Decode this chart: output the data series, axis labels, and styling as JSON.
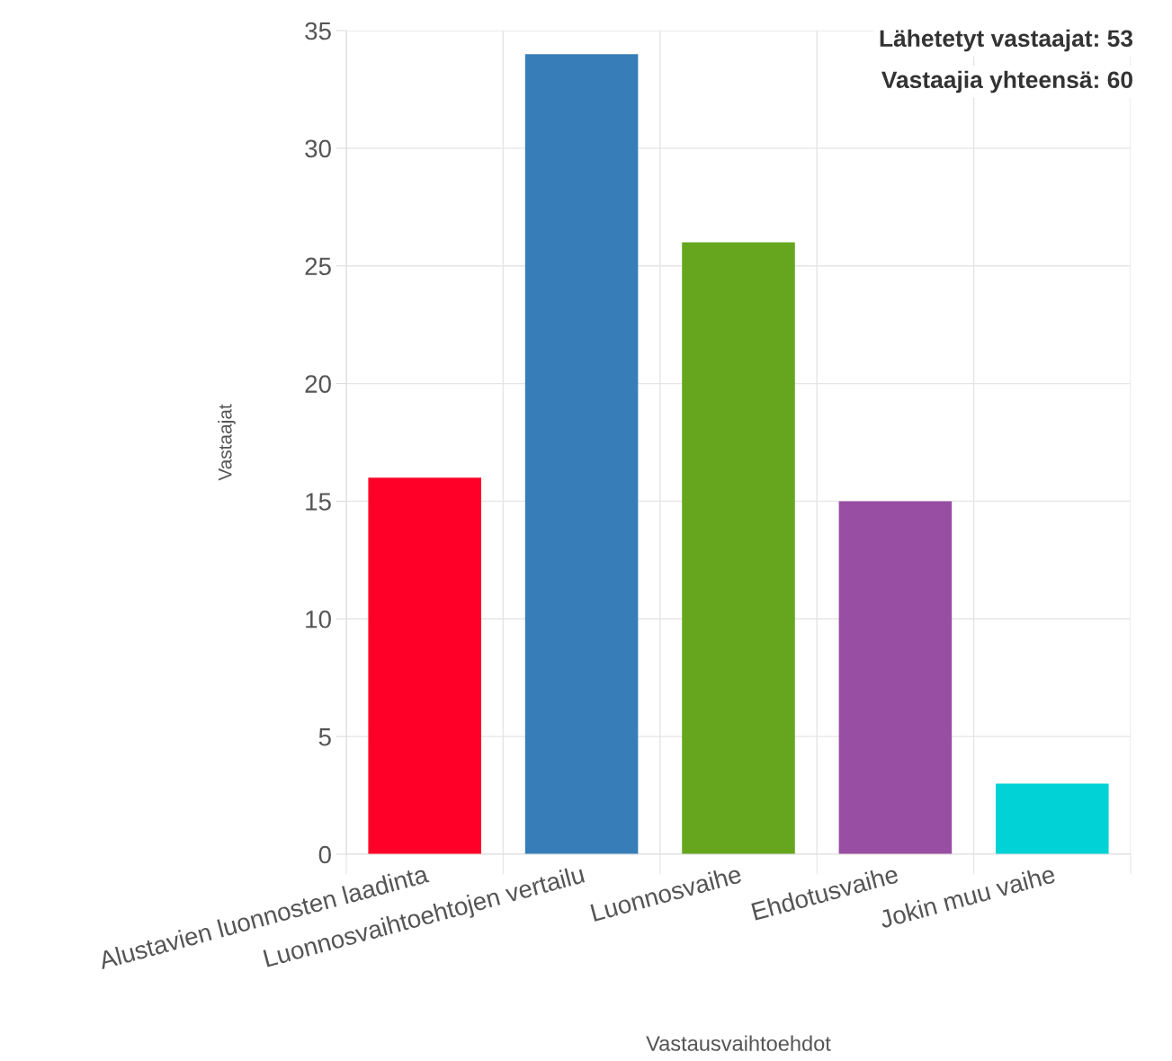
{
  "chart_data": {
    "type": "bar",
    "xlabel": "Vastausvaihtoehdot",
    "ylabel": "Vastaajat",
    "categories": [
      "Alustavien luonnosten laadinta",
      "Luonnosvaihtoehtojen vertailu",
      "Luonnosvaihe",
      "Ehdotusvaihe",
      "Jokin muu vaihe"
    ],
    "values": [
      16,
      34,
      26,
      15,
      3
    ],
    "colors": [
      "#ff0029",
      "#377eb8",
      "#66a61e",
      "#984ea3",
      "#00d2d5"
    ],
    "ylim": [
      0,
      35
    ],
    "yticks": [
      0,
      5,
      10,
      15,
      20,
      25,
      30,
      35
    ],
    "grid": true,
    "annotations": [
      "Lähetetyt vastaajat: 53",
      "Vastaajia yhteensä: 60"
    ]
  }
}
